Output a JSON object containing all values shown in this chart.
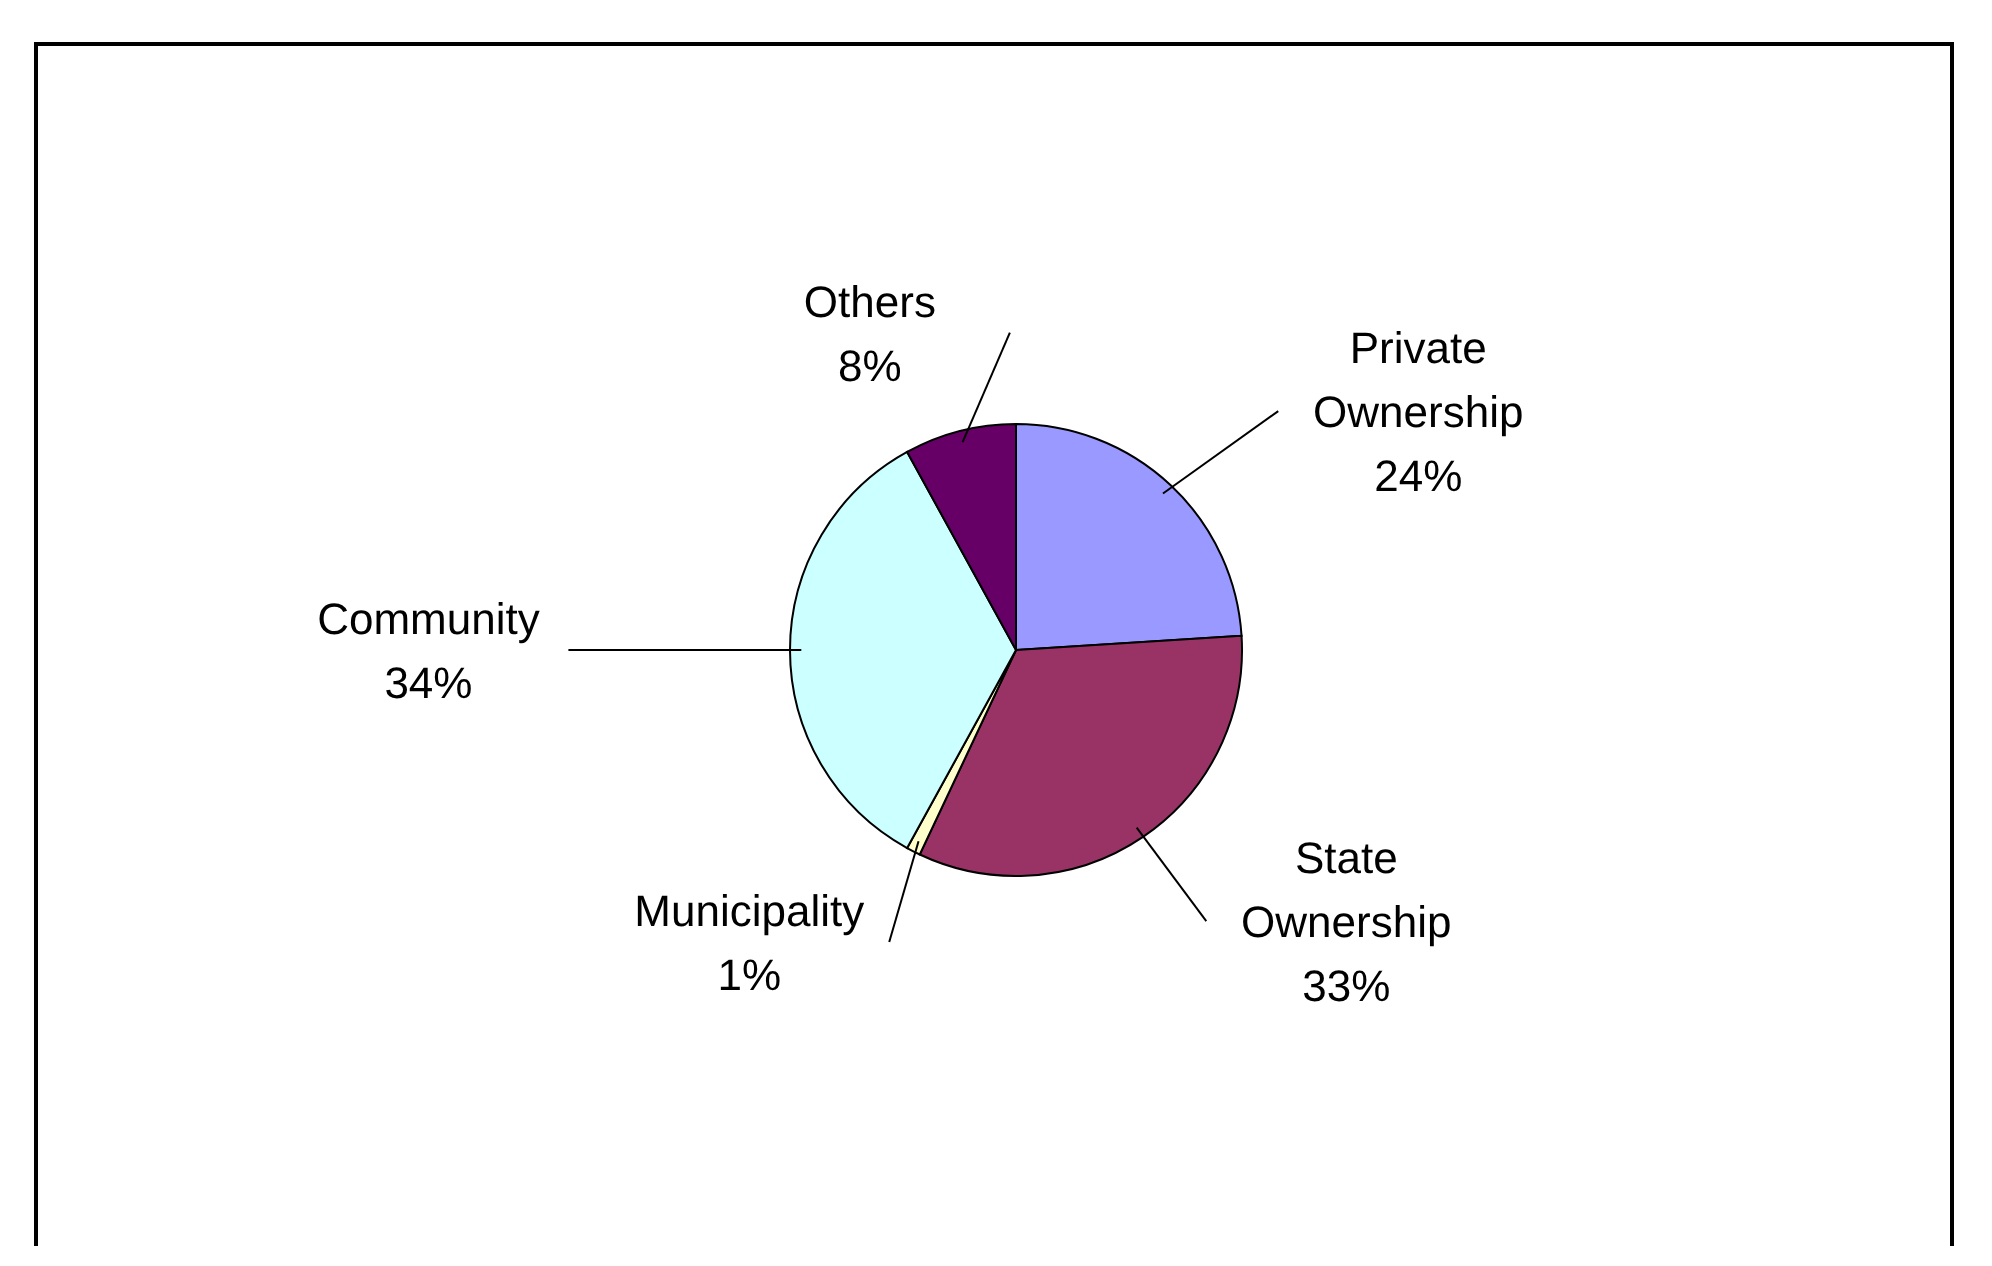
{
  "chart_data": {
    "type": "pie",
    "categories": [
      "Private Ownership",
      "State Ownership",
      "Municipality",
      "Community",
      "Others"
    ],
    "values": [
      24,
      33,
      1,
      34,
      8
    ],
    "colors": [
      "#9999ff",
      "#993366",
      "#ffffcc",
      "#ccffff",
      "#660066"
    ],
    "value_labels": [
      "24%",
      "33%",
      "1%",
      "34%",
      "8%"
    ]
  }
}
